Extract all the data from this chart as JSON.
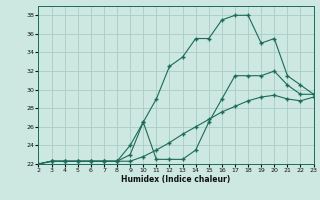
{
  "xlabel": "Humidex (Indice chaleur)",
  "background_color": "#cce8e0",
  "grid_color": "#aaccC4",
  "line_color": "#1a6b5a",
  "xlim": [
    2,
    23
  ],
  "ylim": [
    22,
    39
  ],
  "xticks": [
    2,
    3,
    4,
    5,
    6,
    7,
    8,
    9,
    10,
    11,
    12,
    13,
    14,
    15,
    16,
    17,
    18,
    19,
    20,
    21,
    22,
    23
  ],
  "yticks": [
    22,
    24,
    26,
    28,
    30,
    32,
    34,
    36,
    38
  ],
  "line1_x": [
    2,
    3,
    4,
    5,
    6,
    7,
    8,
    9,
    10,
    11,
    12,
    13,
    14,
    15,
    16,
    17,
    18,
    19,
    20,
    21,
    22,
    23
  ],
  "line1_y": [
    22,
    22.3,
    22.3,
    22.3,
    22.3,
    22.3,
    22.3,
    22.3,
    22.8,
    23.5,
    24.3,
    25.2,
    26.0,
    26.8,
    27.6,
    28.2,
    28.8,
    29.2,
    29.4,
    29.0,
    28.8,
    29.2
  ],
  "line2_x": [
    2,
    3,
    4,
    5,
    6,
    7,
    8,
    9,
    10,
    11,
    12,
    13,
    14,
    15,
    16,
    17,
    18,
    19,
    20,
    21,
    22,
    23
  ],
  "line2_y": [
    22,
    22.3,
    22.3,
    22.3,
    22.3,
    22.3,
    22.3,
    23.0,
    26.5,
    29.0,
    32.5,
    33.5,
    35.5,
    35.5,
    37.5,
    38.0,
    38.0,
    35.0,
    35.5,
    31.5,
    30.5,
    29.5
  ],
  "line3_x": [
    2,
    3,
    4,
    5,
    6,
    7,
    8,
    9,
    10,
    11,
    12,
    13,
    14,
    15,
    16,
    17,
    18,
    19,
    20,
    21,
    22,
    23
  ],
  "line3_y": [
    22,
    22.3,
    22.3,
    22.3,
    22.3,
    22.3,
    22.3,
    24.0,
    26.5,
    22.5,
    22.5,
    22.5,
    23.5,
    26.5,
    29.0,
    31.5,
    31.5,
    31.5,
    32.0,
    30.5,
    29.5,
    29.5
  ]
}
